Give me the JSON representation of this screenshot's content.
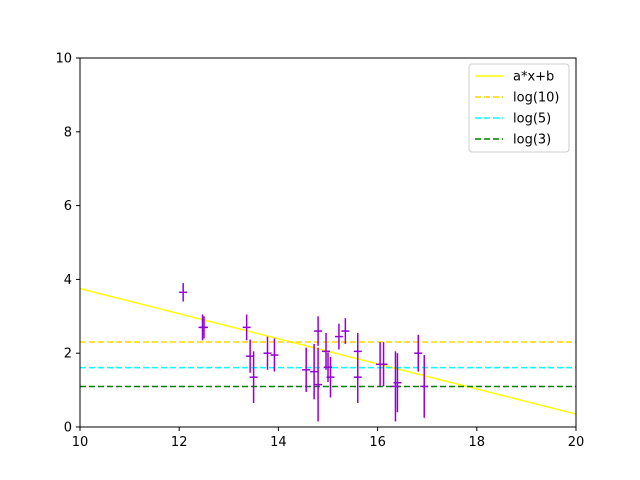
{
  "chart_data": {
    "type": "scatter",
    "title": "",
    "xlabel": "",
    "ylabel": "",
    "xlim": [
      10,
      20
    ],
    "ylim": [
      0,
      10
    ],
    "xticks": [
      10,
      12,
      14,
      16,
      18,
      20
    ],
    "yticks": [
      0,
      2,
      4,
      6,
      8,
      10
    ],
    "grid": false,
    "legend_position": "top-right",
    "points": {
      "color": "#9400d3",
      "data": [
        {
          "x": 12.08,
          "y": 3.65,
          "yerr": 0.25
        },
        {
          "x": 12.47,
          "y": 2.7,
          "yerr": 0.35
        },
        {
          "x": 12.5,
          "y": 2.7,
          "yerr": 0.3
        },
        {
          "x": 13.36,
          "y": 2.7,
          "yerr": 0.35
        },
        {
          "x": 13.43,
          "y": 1.92,
          "yerr": 0.45
        },
        {
          "x": 13.5,
          "y": 1.35,
          "yerr": 0.7
        },
        {
          "x": 13.78,
          "y": 2.0,
          "yerr": 0.45
        },
        {
          "x": 13.92,
          "y": 1.95,
          "yerr": 0.45
        },
        {
          "x": 14.56,
          "y": 1.55,
          "yerr": 0.6
        },
        {
          "x": 14.72,
          "y": 1.5,
          "yerr": 0.75
        },
        {
          "x": 14.8,
          "y": 2.6,
          "yerr": 0.4
        },
        {
          "x": 14.8,
          "y": 1.15,
          "yerr": 1.0
        },
        {
          "x": 14.96,
          "y": 2.05,
          "yerr": 0.5
        },
        {
          "x": 15.0,
          "y": 1.62,
          "yerr": 0.4
        },
        {
          "x": 15.05,
          "y": 1.35,
          "yerr": 0.55
        },
        {
          "x": 15.22,
          "y": 2.45,
          "yerr": 0.35
        },
        {
          "x": 15.35,
          "y": 2.6,
          "yerr": 0.35
        },
        {
          "x": 15.6,
          "y": 2.05,
          "yerr": 0.5
        },
        {
          "x": 15.6,
          "y": 1.35,
          "yerr": 0.7
        },
        {
          "x": 16.05,
          "y": 1.7,
          "yerr": 0.6
        },
        {
          "x": 16.12,
          "y": 1.7,
          "yerr": 0.6
        },
        {
          "x": 16.36,
          "y": 1.1,
          "yerr": 0.95
        },
        {
          "x": 16.4,
          "y": 1.2,
          "yerr": 0.8
        },
        {
          "x": 16.82,
          "y": 2.0,
          "yerr": 0.5
        },
        {
          "x": 16.94,
          "y": 1.1,
          "yerr": 0.85
        }
      ]
    },
    "lines": [
      {
        "name": "a*x+b",
        "color": "#ffff00",
        "style": "solid",
        "kind": "linear",
        "x": [
          10,
          20
        ],
        "y": [
          3.75,
          0.35
        ]
      },
      {
        "name": "log(10)",
        "color": "#ffd700",
        "style": "dashed",
        "kind": "hline",
        "y": 2.3026
      },
      {
        "name": "log(5)",
        "color": "#00ffff",
        "style": "dashed",
        "kind": "hline",
        "y": 1.6094
      },
      {
        "name": "log(3)",
        "color": "#008000",
        "style": "dashed",
        "kind": "hline",
        "y": 1.0986
      }
    ]
  }
}
